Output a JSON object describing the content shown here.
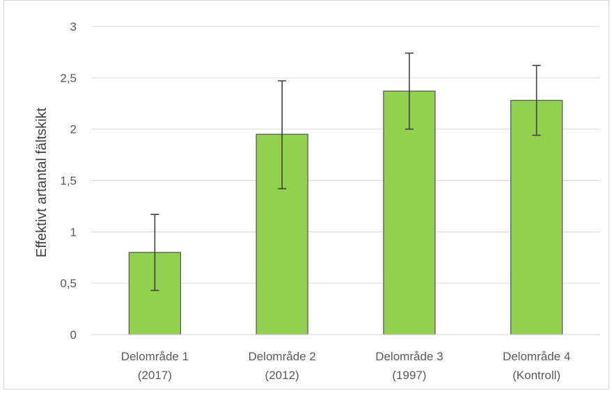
{
  "chart_data": {
    "type": "bar",
    "title": "",
    "xlabel": "",
    "ylabel": "Effektivt artantal fältskikt",
    "ylim": [
      0,
      3
    ],
    "yticks": [
      0,
      0.5,
      1,
      1.5,
      2,
      2.5,
      3
    ],
    "ytick_labels": [
      "0",
      "0,5",
      "1",
      "1,5",
      "2",
      "2,5",
      "3"
    ],
    "categories": [
      [
        "Delområde 1",
        "(2017)"
      ],
      [
        "Delområde 2",
        "(2012)"
      ],
      [
        "Delområde 3",
        "(1997)"
      ],
      [
        "Delområde 4",
        "(Kontroll)"
      ]
    ],
    "values": [
      0.8,
      1.95,
      2.37,
      2.28
    ],
    "error_low": [
      0.43,
      1.42,
      2.0,
      1.94
    ],
    "error_high": [
      1.17,
      2.47,
      2.74,
      2.62
    ],
    "grid": true,
    "legend": "none",
    "colors": {
      "bar_fill": "#92d050",
      "bar_stroke": "#595959",
      "error_bar": "#404040",
      "grid": "#d9d9d9",
      "tick_text": "#595959"
    }
  }
}
